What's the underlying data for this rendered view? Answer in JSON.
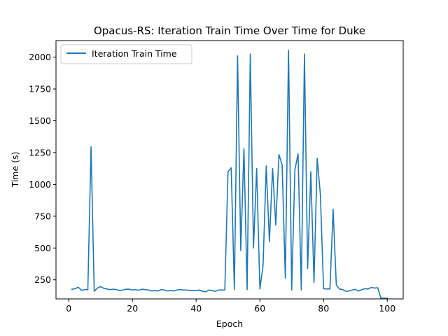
{
  "chart_data": {
    "type": "line",
    "title": "Opacus-RS: Iteration Train Time Over Time for Duke",
    "xlabel": "Epoch",
    "ylabel": "Time (s)",
    "xlim": [
      -4,
      105
    ],
    "ylim": [
      100,
      2130
    ],
    "xticks": [
      0,
      20,
      40,
      60,
      80,
      100
    ],
    "yticks": [
      250,
      500,
      750,
      1000,
      1250,
      1500,
      1750,
      2000
    ],
    "legend_position": "top-left",
    "grid": false,
    "series": [
      {
        "name": "Iteration Train Time",
        "color": "#1f77b4",
        "x": [
          1,
          2,
          3,
          4,
          5,
          6,
          7,
          8,
          9,
          10,
          11,
          12,
          13,
          14,
          15,
          16,
          17,
          18,
          19,
          20,
          21,
          22,
          23,
          24,
          25,
          26,
          27,
          28,
          29,
          30,
          31,
          32,
          33,
          34,
          35,
          36,
          37,
          38,
          39,
          40,
          41,
          42,
          43,
          44,
          45,
          46,
          47,
          48,
          49,
          50,
          51,
          52,
          53,
          54,
          55,
          56,
          57,
          58,
          59,
          60,
          61,
          62,
          63,
          64,
          65,
          66,
          67,
          68,
          69,
          70,
          71,
          72,
          73,
          74,
          75,
          76,
          77,
          78,
          79,
          80,
          81,
          82,
          83,
          84,
          85,
          86,
          87,
          88,
          89,
          90,
          91,
          92,
          93,
          94,
          95,
          96,
          97,
          98,
          99,
          100
        ],
        "values": [
          176,
          180,
          192,
          168,
          173,
          173,
          1295,
          160,
          185,
          197,
          183,
          178,
          173,
          176,
          173,
          165,
          170,
          176,
          176,
          170,
          173,
          168,
          176,
          173,
          170,
          162,
          165,
          162,
          173,
          170,
          162,
          165,
          162,
          170,
          173,
          170,
          170,
          165,
          167,
          165,
          170,
          160,
          156,
          170,
          165,
          160,
          170,
          170,
          170,
          1100,
          1130,
          173,
          2010,
          480,
          1280,
          173,
          2025,
          500,
          1125,
          178,
          360,
          1145,
          550,
          1125,
          680,
          1235,
          1150,
          262,
          2055,
          170,
          1115,
          1240,
          170,
          2025,
          340,
          1100,
          230,
          1205,
          920,
          180,
          178,
          178,
          805,
          210,
          178,
          173,
          160,
          162,
          170,
          175,
          162,
          173,
          180,
          178,
          190,
          185,
          188,
          105,
          105,
          105
        ]
      }
    ]
  }
}
